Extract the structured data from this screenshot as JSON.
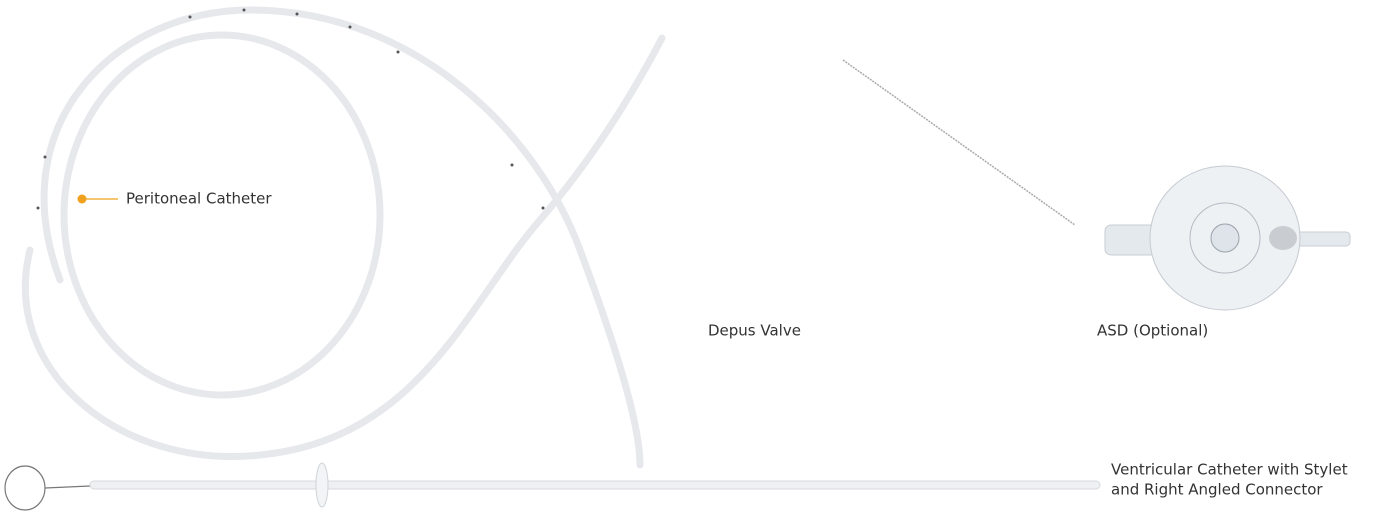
{
  "labels": {
    "peritoneal": "Peritoneal Catheter",
    "valve": "Depus Valve",
    "asd": "ASD (Optional)",
    "ventricular_1": "Ventricular Catheter with Stylet",
    "ventricular_2": "and Right Angled Connector"
  }
}
